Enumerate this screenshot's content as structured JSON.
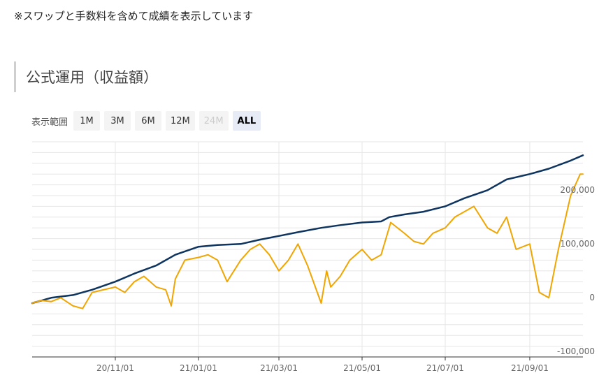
{
  "note": "※スワップと手数料を含めて成績を表示しています",
  "section_title": "公式運用（収益額）",
  "range_selector": {
    "label": "表示範囲",
    "buttons": [
      {
        "label": "1M",
        "state": "normal"
      },
      {
        "label": "3M",
        "state": "normal"
      },
      {
        "label": "6M",
        "state": "normal"
      },
      {
        "label": "12M",
        "state": "normal"
      },
      {
        "label": "24M",
        "state": "disabled"
      },
      {
        "label": "ALL",
        "state": "active"
      }
    ]
  },
  "colors": {
    "navy_series": "#0e3460",
    "orange_series": "#f0a500",
    "grid": "#e6e6e6",
    "axis": "#333333"
  },
  "chart_data": {
    "type": "line",
    "title": "",
    "xlabel": "",
    "ylabel": "",
    "x_ticks": [
      "20/11/01",
      "21/01/01",
      "21/03/01",
      "21/05/01",
      "21/07/01",
      "21/09/01"
    ],
    "y_ticks": [
      {
        "value": -100000,
        "label": "-100,000"
      },
      {
        "value": 0,
        "label": "0"
      },
      {
        "value": 100000,
        "label": "100,000"
      },
      {
        "value": 200000,
        "label": "200,000"
      }
    ],
    "xlim": [
      "2020-09-01",
      "2021-10-10"
    ],
    "ylim": [
      -100000,
      300000
    ],
    "grid": true,
    "legend": "none",
    "series": [
      {
        "color": "#0e3460",
        "points": [
          [
            "2020-09-01",
            0
          ],
          [
            "2020-09-15",
            10000
          ],
          [
            "2020-10-01",
            15000
          ],
          [
            "2020-10-15",
            25000
          ],
          [
            "2020-11-01",
            40000
          ],
          [
            "2020-11-15",
            55000
          ],
          [
            "2020-12-01",
            70000
          ],
          [
            "2020-12-15",
            90000
          ],
          [
            "2021-01-01",
            105000
          ],
          [
            "2021-01-15",
            108000
          ],
          [
            "2021-02-01",
            110000
          ],
          [
            "2021-02-15",
            118000
          ],
          [
            "2021-03-01",
            125000
          ],
          [
            "2021-03-15",
            132000
          ],
          [
            "2021-04-01",
            140000
          ],
          [
            "2021-04-15",
            145000
          ],
          [
            "2021-05-01",
            150000
          ],
          [
            "2021-05-15",
            152000
          ],
          [
            "2021-05-21",
            160000
          ],
          [
            "2021-06-01",
            165000
          ],
          [
            "2021-06-15",
            170000
          ],
          [
            "2021-07-01",
            180000
          ],
          [
            "2021-07-15",
            195000
          ],
          [
            "2021-08-01",
            210000
          ],
          [
            "2021-08-15",
            230000
          ],
          [
            "2021-09-01",
            240000
          ],
          [
            "2021-09-15",
            250000
          ],
          [
            "2021-10-01",
            265000
          ],
          [
            "2021-10-10",
            275000
          ]
        ]
      },
      {
        "color": "#f0a500",
        "points": [
          [
            "2020-09-01",
            0
          ],
          [
            "2020-09-08",
            5000
          ],
          [
            "2020-09-15",
            3000
          ],
          [
            "2020-09-22",
            10000
          ],
          [
            "2020-10-01",
            -5000
          ],
          [
            "2020-10-08",
            -10000
          ],
          [
            "2020-10-15",
            20000
          ],
          [
            "2020-11-01",
            30000
          ],
          [
            "2020-11-08",
            20000
          ],
          [
            "2020-11-15",
            40000
          ],
          [
            "2020-11-22",
            50000
          ],
          [
            "2020-12-01",
            30000
          ],
          [
            "2020-12-08",
            25000
          ],
          [
            "2020-12-12",
            -5000
          ],
          [
            "2020-12-15",
            45000
          ],
          [
            "2020-12-22",
            80000
          ],
          [
            "2021-01-01",
            85000
          ],
          [
            "2021-01-08",
            90000
          ],
          [
            "2021-01-15",
            80000
          ],
          [
            "2021-01-22",
            40000
          ],
          [
            "2021-02-01",
            80000
          ],
          [
            "2021-02-08",
            100000
          ],
          [
            "2021-02-15",
            110000
          ],
          [
            "2021-02-22",
            90000
          ],
          [
            "2021-03-01",
            60000
          ],
          [
            "2021-03-08",
            80000
          ],
          [
            "2021-03-15",
            110000
          ],
          [
            "2021-03-22",
            70000
          ],
          [
            "2021-04-01",
            0
          ],
          [
            "2021-04-05",
            60000
          ],
          [
            "2021-04-08",
            30000
          ],
          [
            "2021-04-15",
            50000
          ],
          [
            "2021-04-22",
            80000
          ],
          [
            "2021-05-01",
            100000
          ],
          [
            "2021-05-08",
            80000
          ],
          [
            "2021-05-15",
            90000
          ],
          [
            "2021-05-22",
            150000
          ],
          [
            "2021-06-01",
            130000
          ],
          [
            "2021-06-08",
            115000
          ],
          [
            "2021-06-15",
            110000
          ],
          [
            "2021-06-22",
            130000
          ],
          [
            "2021-07-01",
            140000
          ],
          [
            "2021-07-08",
            160000
          ],
          [
            "2021-07-15",
            170000
          ],
          [
            "2021-07-22",
            180000
          ],
          [
            "2021-08-01",
            140000
          ],
          [
            "2021-08-08",
            130000
          ],
          [
            "2021-08-15",
            160000
          ],
          [
            "2021-08-22",
            100000
          ],
          [
            "2021-09-01",
            110000
          ],
          [
            "2021-09-08",
            20000
          ],
          [
            "2021-09-15",
            10000
          ],
          [
            "2021-09-22",
            100000
          ],
          [
            "2021-10-01",
            200000
          ],
          [
            "2021-10-08",
            240000
          ],
          [
            "2021-10-10",
            240000
          ]
        ]
      }
    ]
  }
}
